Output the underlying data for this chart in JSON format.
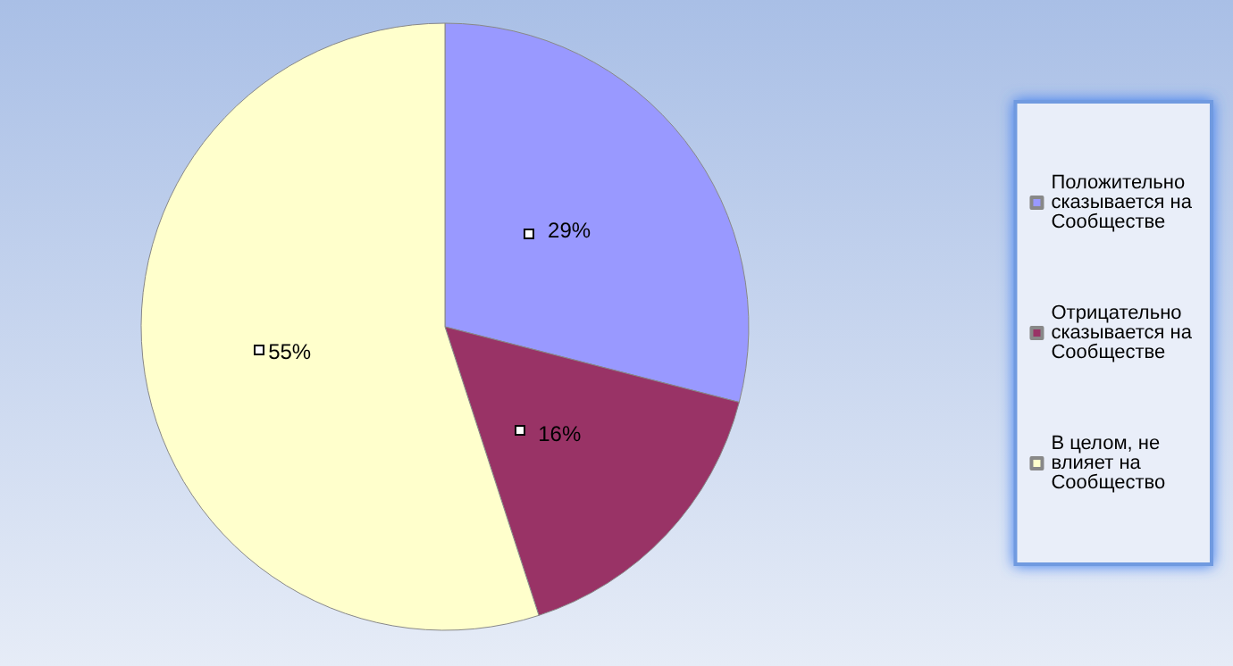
{
  "chart_data": {
    "type": "pie",
    "categories": [
      "Положительно сказывается на Сообществе",
      "Отрицательно сказывается на Сообществе",
      "В целом, не влияет на Сообщество"
    ],
    "values": [
      29,
      16,
      55
    ],
    "colors": [
      "#9999ff",
      "#993366",
      "#ffffcc"
    ],
    "value_labels": [
      "29%",
      "16%",
      "55%"
    ],
    "legend": "right"
  }
}
